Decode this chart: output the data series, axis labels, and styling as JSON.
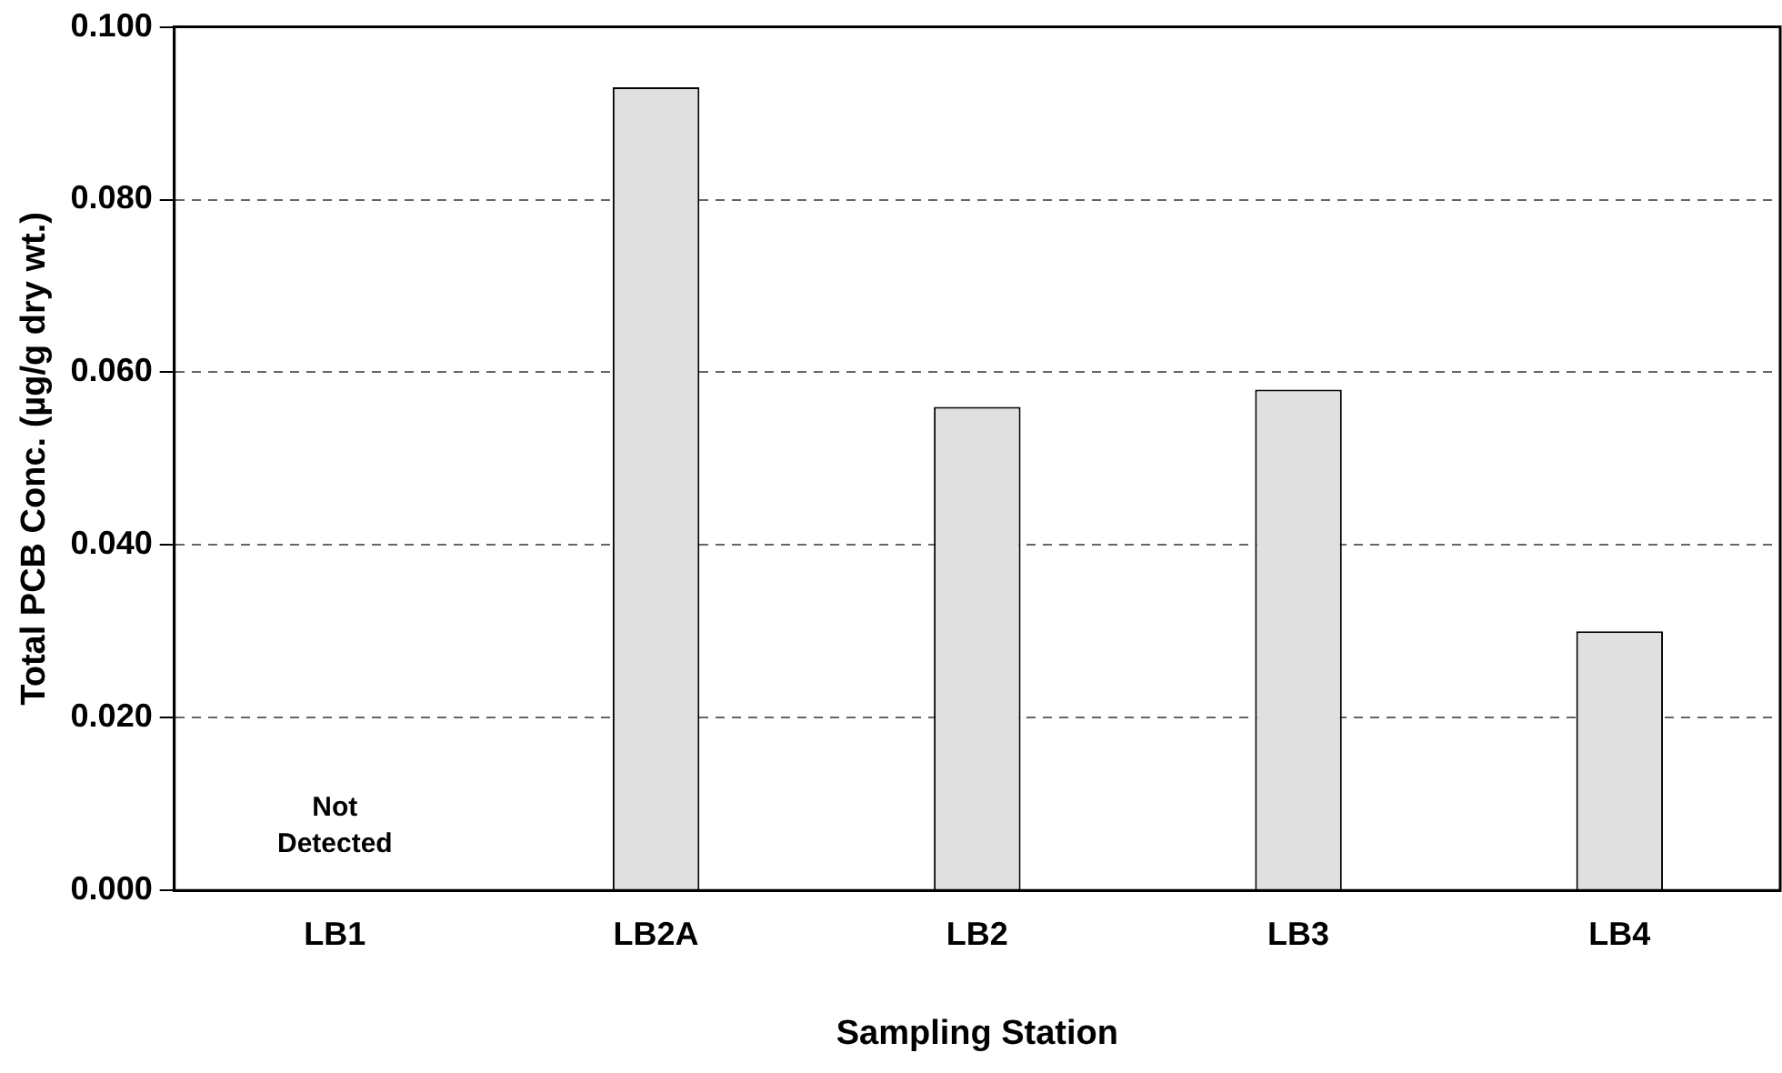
{
  "chart_data": {
    "type": "bar",
    "xlabel": "Sampling Station",
    "ylabel": "Total PCB Conc. (µg/g dry wt.)",
    "categories": [
      "LB1",
      "LB2A",
      "LB2",
      "LB3",
      "LB4"
    ],
    "values": [
      null,
      0.093,
      0.056,
      0.058,
      0.03
    ],
    "color": "#e0e0e0",
    "ylim": [
      0,
      0.1
    ],
    "yticks": [
      {
        "value": 0,
        "label": "0.000"
      },
      {
        "value": 0.02,
        "label": "0.020"
      },
      {
        "value": 0.04,
        "label": "0.040"
      },
      {
        "value": 0.06,
        "label": "0.060"
      },
      {
        "value": 0.08,
        "label": "0.080"
      },
      {
        "value": 0.1,
        "label": "0.100"
      }
    ],
    "grid": "y",
    "legend": false,
    "annotations": [
      "Not Detected"
    ]
  }
}
